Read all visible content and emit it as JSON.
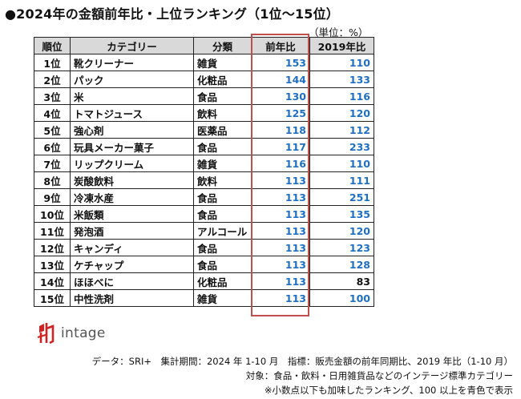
{
  "title": "●2024年の金額前年比・上位ランキング（1位～15位）",
  "unit": "（単位：%）",
  "table": {
    "headers": [
      "順位",
      "カテゴリー",
      "分類",
      "前年比",
      "2019年比"
    ],
    "rows": [
      {
        "rank": "1位",
        "category": "靴クリーナー",
        "type": "雑貨",
        "yoy": "153",
        "vs2019": "110"
      },
      {
        "rank": "2位",
        "category": "パック",
        "type": "化粧品",
        "yoy": "144",
        "vs2019": "133"
      },
      {
        "rank": "3位",
        "category": "米",
        "type": "食品",
        "yoy": "130",
        "vs2019": "116"
      },
      {
        "rank": "4位",
        "category": "トマトジュース",
        "type": "飲料",
        "yoy": "125",
        "vs2019": "120"
      },
      {
        "rank": "5位",
        "category": "強心剤",
        "type": "医薬品",
        "yoy": "118",
        "vs2019": "112"
      },
      {
        "rank": "6位",
        "category": "玩具メーカー菓子",
        "type": "食品",
        "yoy": "117",
        "vs2019": "233"
      },
      {
        "rank": "7位",
        "category": "リップクリーム",
        "type": "雑貨",
        "yoy": "116",
        "vs2019": "110"
      },
      {
        "rank": "8位",
        "category": "炭酸飲料",
        "type": "飲料",
        "yoy": "113",
        "vs2019": "111"
      },
      {
        "rank": "9位",
        "category": "冷凍水産",
        "type": "食品",
        "yoy": "113",
        "vs2019": "251"
      },
      {
        "rank": "10位",
        "category": "米飯類",
        "type": "食品",
        "yoy": "113",
        "vs2019": "135"
      },
      {
        "rank": "11位",
        "category": "発泡酒",
        "type": "アルコール",
        "yoy": "113",
        "vs2019": "120"
      },
      {
        "rank": "12位",
        "category": "キャンディ",
        "type": "食品",
        "yoy": "113",
        "vs2019": "123"
      },
      {
        "rank": "13位",
        "category": "ケチャップ",
        "type": "食品",
        "yoy": "113",
        "vs2019": "128"
      },
      {
        "rank": "14位",
        "category": "ほほべに",
        "type": "化粧品",
        "yoy": "113",
        "vs2019": "83"
      },
      {
        "rank": "15位",
        "category": "中性洗剤",
        "type": "雑貨",
        "yoy": "113",
        "vs2019": "100"
      }
    ]
  },
  "logo": {
    "text": "intage"
  },
  "footnotes": [
    "データ：SRI+　集計期間：2024 年 1-10 月　指標：販売金額の前年同期比、2019 年比（1-10 月）",
    "対象：食品・飲料・日用雑貨品などのインテージ標準カテゴリー",
    "※小数点以下も加味したランキング、100 以上を青色で表示"
  ],
  "colors": {
    "highlight": "#1f6fc4",
    "header_bg": "#d9d9d9",
    "frame": "#c0504d"
  }
}
